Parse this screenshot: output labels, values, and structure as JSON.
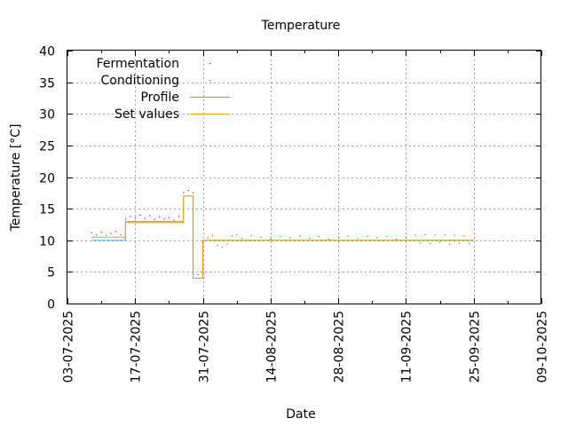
{
  "chart_data": {
    "type": "line",
    "title": "Temperature",
    "xlabel": "Date",
    "ylabel": "Temperature [°C]",
    "x_ticks": [
      "03-07-2025",
      "17-07-2025",
      "31-07-2025",
      "14-08-2025",
      "28-08-2025",
      "11-09-2025",
      "25-09-2025",
      "09-10-2025"
    ],
    "xlim": [
      "2025-07-03",
      "2025-10-09"
    ],
    "ylim": [
      0,
      40
    ],
    "y_ticks": [
      0,
      5,
      10,
      15,
      20,
      25,
      30,
      35,
      40
    ],
    "grid": true,
    "legend_position": "top-left",
    "series": [
      {
        "name": "Fermentation",
        "style": "dots",
        "color": "#9400d3",
        "points": [
          [
            "2025-07-08",
            11.2
          ],
          [
            "2025-07-09",
            10.9
          ],
          [
            "2025-07-10",
            11.3
          ],
          [
            "2025-07-11",
            10.8
          ],
          [
            "2025-07-12",
            11.1
          ],
          [
            "2025-07-13",
            11.4
          ],
          [
            "2025-07-14",
            10.9
          ],
          [
            "2025-07-15",
            13.4
          ],
          [
            "2025-07-16",
            13.8
          ],
          [
            "2025-07-17",
            13.6
          ],
          [
            "2025-07-18",
            14.0
          ],
          [
            "2025-07-19",
            13.5
          ],
          [
            "2025-07-20",
            13.9
          ],
          [
            "2025-07-21",
            13.3
          ],
          [
            "2025-07-22",
            13.7
          ],
          [
            "2025-07-23",
            13.4
          ],
          [
            "2025-07-24",
            13.6
          ],
          [
            "2025-07-25",
            13.2
          ],
          [
            "2025-07-26",
            13.8
          ],
          [
            "2025-07-27",
            17.6
          ],
          [
            "2025-07-28",
            17.9
          ],
          [
            "2025-07-29",
            17.5
          ]
        ]
      },
      {
        "name": "Conditioning",
        "style": "dots",
        "color": "#009e73",
        "points": [
          [
            "2025-07-30",
            4.6
          ],
          [
            "2025-07-31",
            9.8
          ],
          [
            "2025-08-01",
            10.4
          ],
          [
            "2025-08-02",
            10.8
          ],
          [
            "2025-08-03",
            9.2
          ],
          [
            "2025-08-04",
            8.9
          ],
          [
            "2025-08-05",
            9.4
          ],
          [
            "2025-08-06",
            10.7
          ],
          [
            "2025-08-07",
            10.9
          ],
          [
            "2025-08-08",
            10.3
          ],
          [
            "2025-08-10",
            10.8
          ],
          [
            "2025-08-12",
            10.5
          ],
          [
            "2025-08-14",
            10.2
          ],
          [
            "2025-08-16",
            10.6
          ],
          [
            "2025-08-18",
            10.4
          ],
          [
            "2025-08-20",
            10.7
          ],
          [
            "2025-08-22",
            10.3
          ],
          [
            "2025-08-24",
            10.6
          ],
          [
            "2025-08-26",
            10.2
          ],
          [
            "2025-08-28",
            10.5
          ],
          [
            "2025-08-30",
            10.7
          ],
          [
            "2025-09-01",
            10.3
          ],
          [
            "2025-09-03",
            10.6
          ],
          [
            "2025-09-05",
            10.4
          ],
          [
            "2025-09-07",
            10.6
          ],
          [
            "2025-09-09",
            10.2
          ],
          [
            "2025-09-11",
            10.5
          ],
          [
            "2025-09-13",
            10.8
          ],
          [
            "2025-09-14",
            9.6
          ],
          [
            "2025-09-15",
            10.9
          ],
          [
            "2025-09-16",
            9.5
          ],
          [
            "2025-09-17",
            10.8
          ],
          [
            "2025-09-18",
            9.7
          ],
          [
            "2025-09-19",
            10.9
          ],
          [
            "2025-09-20",
            9.4
          ],
          [
            "2025-09-21",
            10.8
          ],
          [
            "2025-09-22",
            9.6
          ],
          [
            "2025-09-23",
            10.7
          ],
          [
            "2025-09-24",
            9.5
          ]
        ]
      },
      {
        "name": "Profile",
        "style": "step",
        "color": "#56b4e9",
        "points": [
          [
            "2025-07-08",
            10.0
          ],
          [
            "2025-07-15",
            13.0
          ],
          [
            "2025-07-27",
            17.0
          ],
          [
            "2025-07-29",
            4.0
          ],
          [
            "2025-07-31",
            10.0
          ],
          [
            "2025-09-25",
            10.0
          ]
        ]
      },
      {
        "name": "Set values",
        "style": "step",
        "color": "#e69f00",
        "points": [
          [
            "2025-07-08",
            10.5
          ],
          [
            "2025-07-15",
            12.8
          ],
          [
            "2025-07-27",
            17.0
          ],
          [
            "2025-07-29",
            4.0
          ],
          [
            "2025-07-31",
            10.0
          ],
          [
            "2025-09-25",
            10.0
          ]
        ]
      }
    ]
  }
}
